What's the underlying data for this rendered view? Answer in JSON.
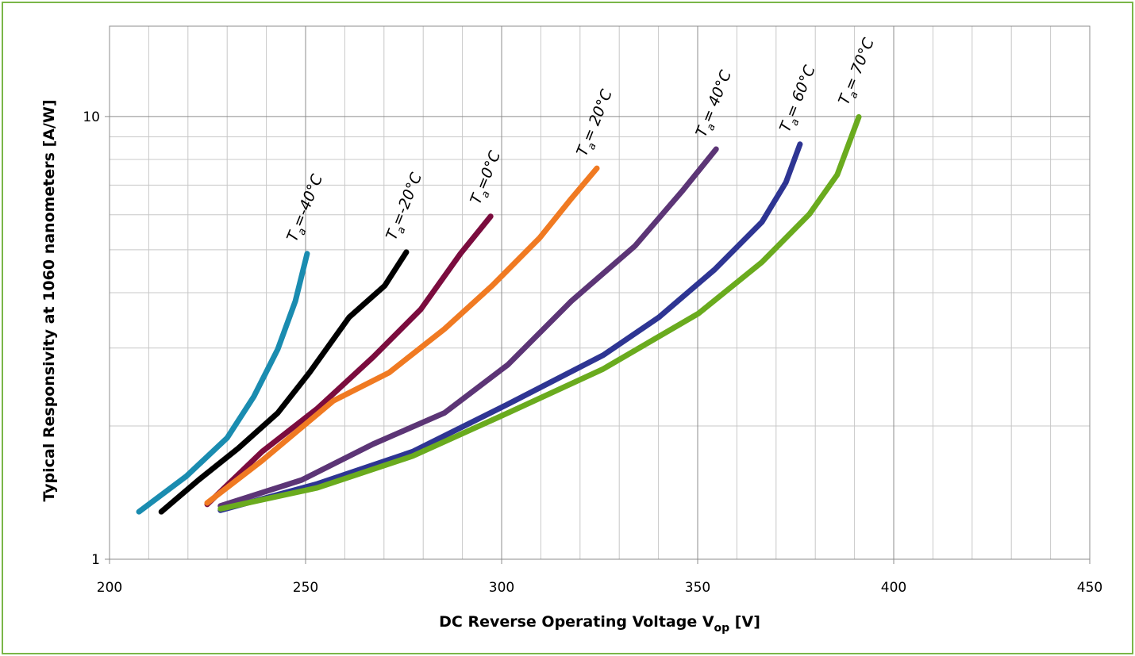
{
  "chart_data": {
    "type": "line",
    "y_label": "Typical Responsivity at 1060 nanometers [A/W]",
    "x_label": {
      "text": "DC Reverse Operating Voltage V",
      "sub": "op",
      "rest": " [V]"
    },
    "xlim": [
      200,
      450
    ],
    "xticks": [
      200,
      250,
      300,
      350,
      400,
      450
    ],
    "x_minor_grid": [
      210,
      220,
      230,
      240,
      260,
      270,
      280,
      290,
      310,
      320,
      330,
      340,
      360,
      370,
      380,
      390,
      410,
      420,
      430,
      440
    ],
    "ylim": [
      1,
      16
    ],
    "yticks": [
      1,
      10
    ],
    "y_minor_grid": [
      2,
      3,
      4,
      5,
      6,
      7,
      8,
      9
    ],
    "log_y": true,
    "grid": true,
    "series": [
      {
        "label": {
          "base": "T",
          "sub": "a",
          "rest": "=-40°C"
        },
        "color": "#1a8cb0",
        "x": [
          207.5,
          219.6,
          230,
          236.8,
          242.9,
          247.4,
          250.4
        ],
        "values": [
          1.28,
          1.54,
          1.88,
          2.33,
          2.98,
          3.83,
          4.9
        ]
      },
      {
        "label": {
          "base": "T",
          "sub": "a",
          "rest": "=-20°C"
        },
        "color": "#000000",
        "x": [
          213.2,
          222.7,
          232.8,
          242.9,
          251,
          261.1,
          270.2,
          275.7
        ],
        "values": [
          1.28,
          1.51,
          1.78,
          2.14,
          2.64,
          3.52,
          4.15,
          4.94
        ]
      },
      {
        "label": {
          "base": "T",
          "sub": "a",
          "rest": "=0°C"
        },
        "color": "#7b0c3e",
        "x": [
          224.9,
          238.9,
          253,
          267.2,
          279.4,
          289.5,
          297.2
        ],
        "values": [
          1.33,
          1.75,
          2.19,
          2.86,
          3.67,
          4.9,
          5.95
        ]
      },
      {
        "label": {
          "base": "T",
          "sub": "a",
          "rest": "= 20°C"
        },
        "color": "#f07a22",
        "x": [
          224.9,
          238.9,
          257.1,
          271.3,
          285.4,
          297.6,
          309.7,
          317.8,
          324.3
        ],
        "values": [
          1.34,
          1.67,
          2.28,
          2.64,
          3.31,
          4.15,
          5.32,
          6.53,
          7.64
        ]
      },
      {
        "label": {
          "base": "T",
          "sub": "a",
          "rest": "= 40°C"
        },
        "color": "#5c3576",
        "x": [
          228.3,
          249,
          267.2,
          285.4,
          301.6,
          317.8,
          334,
          346.2,
          354.7
        ],
        "values": [
          1.32,
          1.51,
          1.82,
          2.14,
          2.75,
          3.83,
          5.1,
          6.81,
          8.44
        ]
      },
      {
        "label": {
          "base": "T",
          "sub": "a",
          "rest": "= 60°C"
        },
        "color": "#2e3593",
        "x": [
          228.3,
          253,
          277.3,
          301.6,
          325.9,
          340.1,
          354.3,
          366.4,
          372.5,
          376.1
        ],
        "values": [
          1.29,
          1.48,
          1.75,
          2.24,
          2.89,
          3.52,
          4.51,
          5.78,
          7.1,
          8.66
        ]
      },
      {
        "label": {
          "base": "T",
          "sub": "a",
          "rest": "= 70°C"
        },
        "color": "#6aab1e",
        "x": [
          228.3,
          253,
          277.3,
          301.6,
          325.9,
          350.2,
          366.4,
          378.5,
          385.6,
          391.1
        ],
        "values": [
          1.3,
          1.45,
          1.71,
          2.14,
          2.69,
          3.59,
          4.69,
          6.02,
          7.39,
          9.98
        ]
      }
    ]
  }
}
